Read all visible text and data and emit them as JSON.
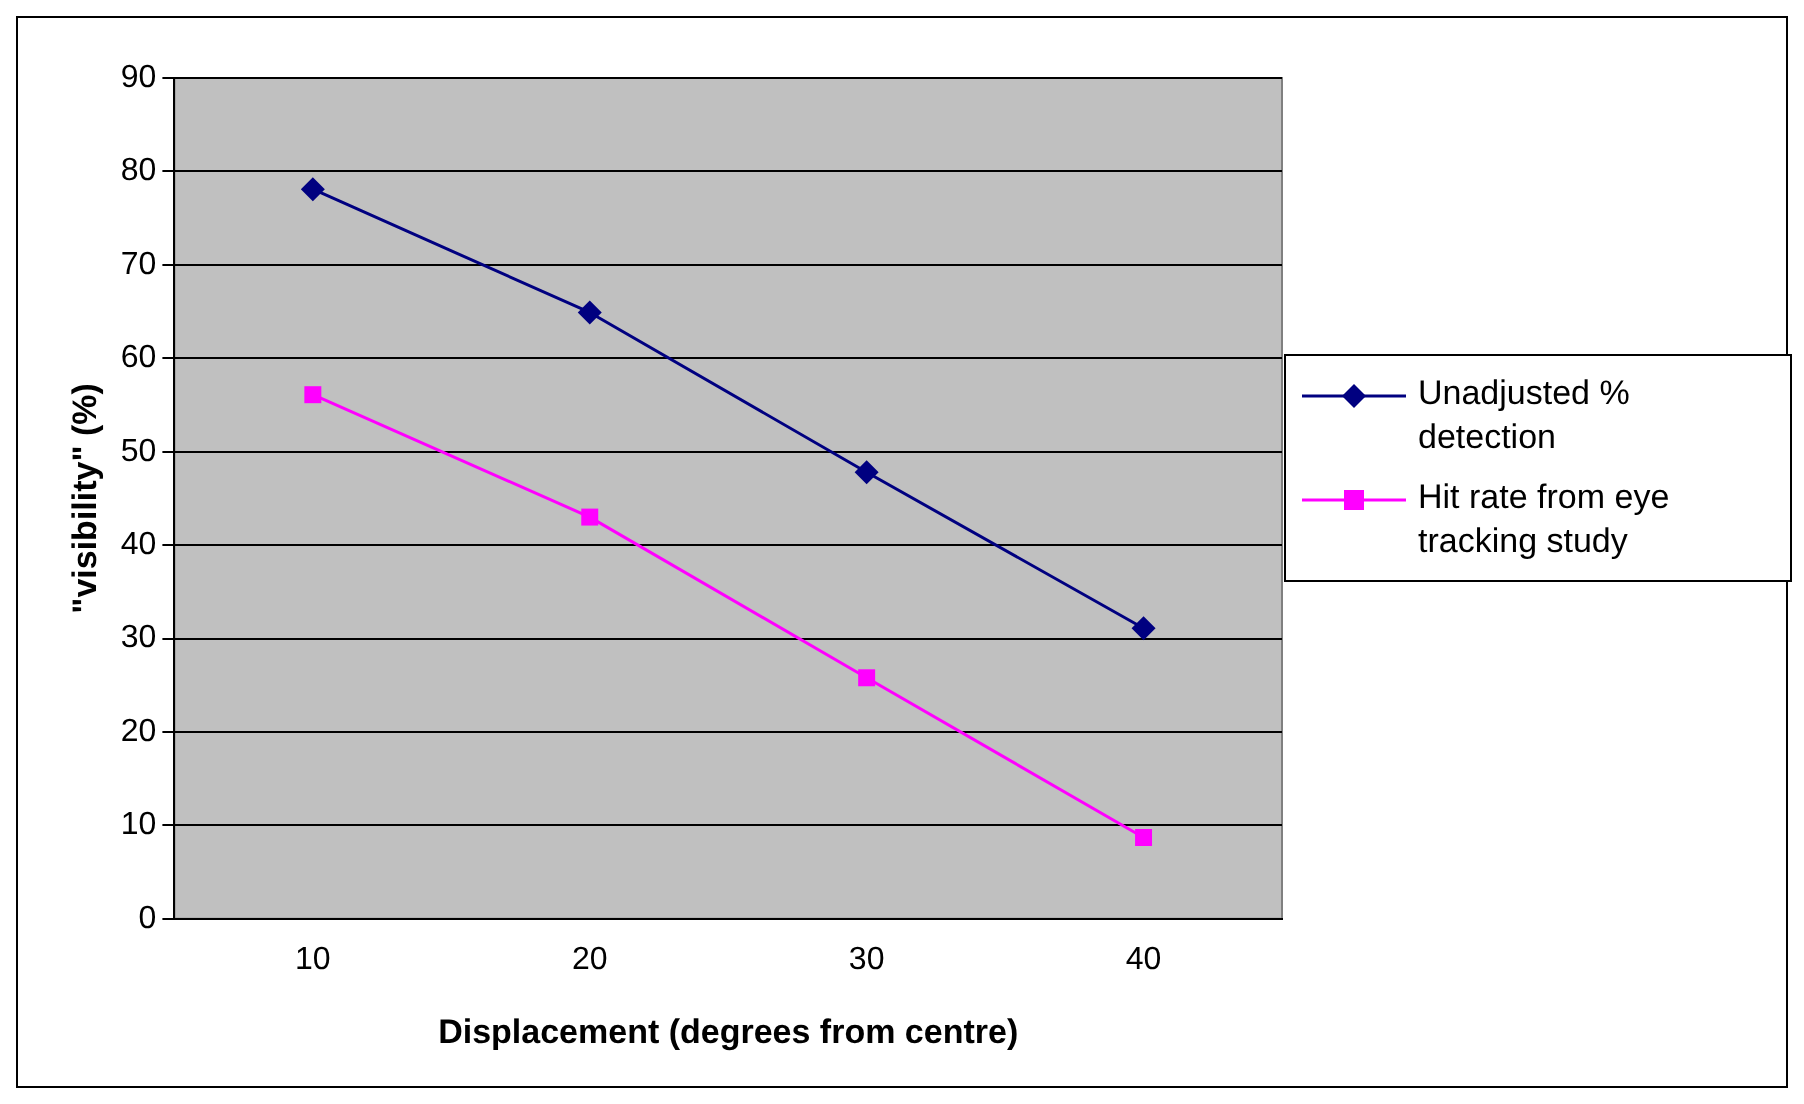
{
  "chart_data": {
    "type": "line",
    "xlabel": "Displacement (degrees from centre)",
    "ylabel": "\"visibility\" (%)",
    "categories": [
      "10",
      "20",
      "30",
      "40"
    ],
    "series": [
      {
        "name": "Unadjusted % detection",
        "color": "#000080",
        "marker": "diamond",
        "values": [
          78.1,
          64.9,
          47.8,
          31.1
        ]
      },
      {
        "name": "Hit rate from eye tracking study",
        "color": "#ff00ff",
        "marker": "square",
        "values": [
          56.1,
          43.0,
          25.8,
          8.7
        ]
      }
    ],
    "ylim": [
      0,
      90
    ],
    "yticks": [
      0,
      10,
      20,
      30,
      40,
      50,
      60,
      70,
      80,
      90
    ],
    "grid": "y",
    "legend": "right"
  }
}
